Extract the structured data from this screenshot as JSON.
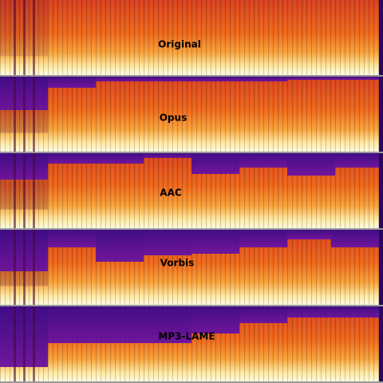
{
  "panels": [
    {
      "label": "Original"
    },
    {
      "label": "Opus"
    },
    {
      "label": "AAC"
    },
    {
      "label": "Vorbis"
    },
    {
      "label": "MP3-LAME"
    }
  ]
}
